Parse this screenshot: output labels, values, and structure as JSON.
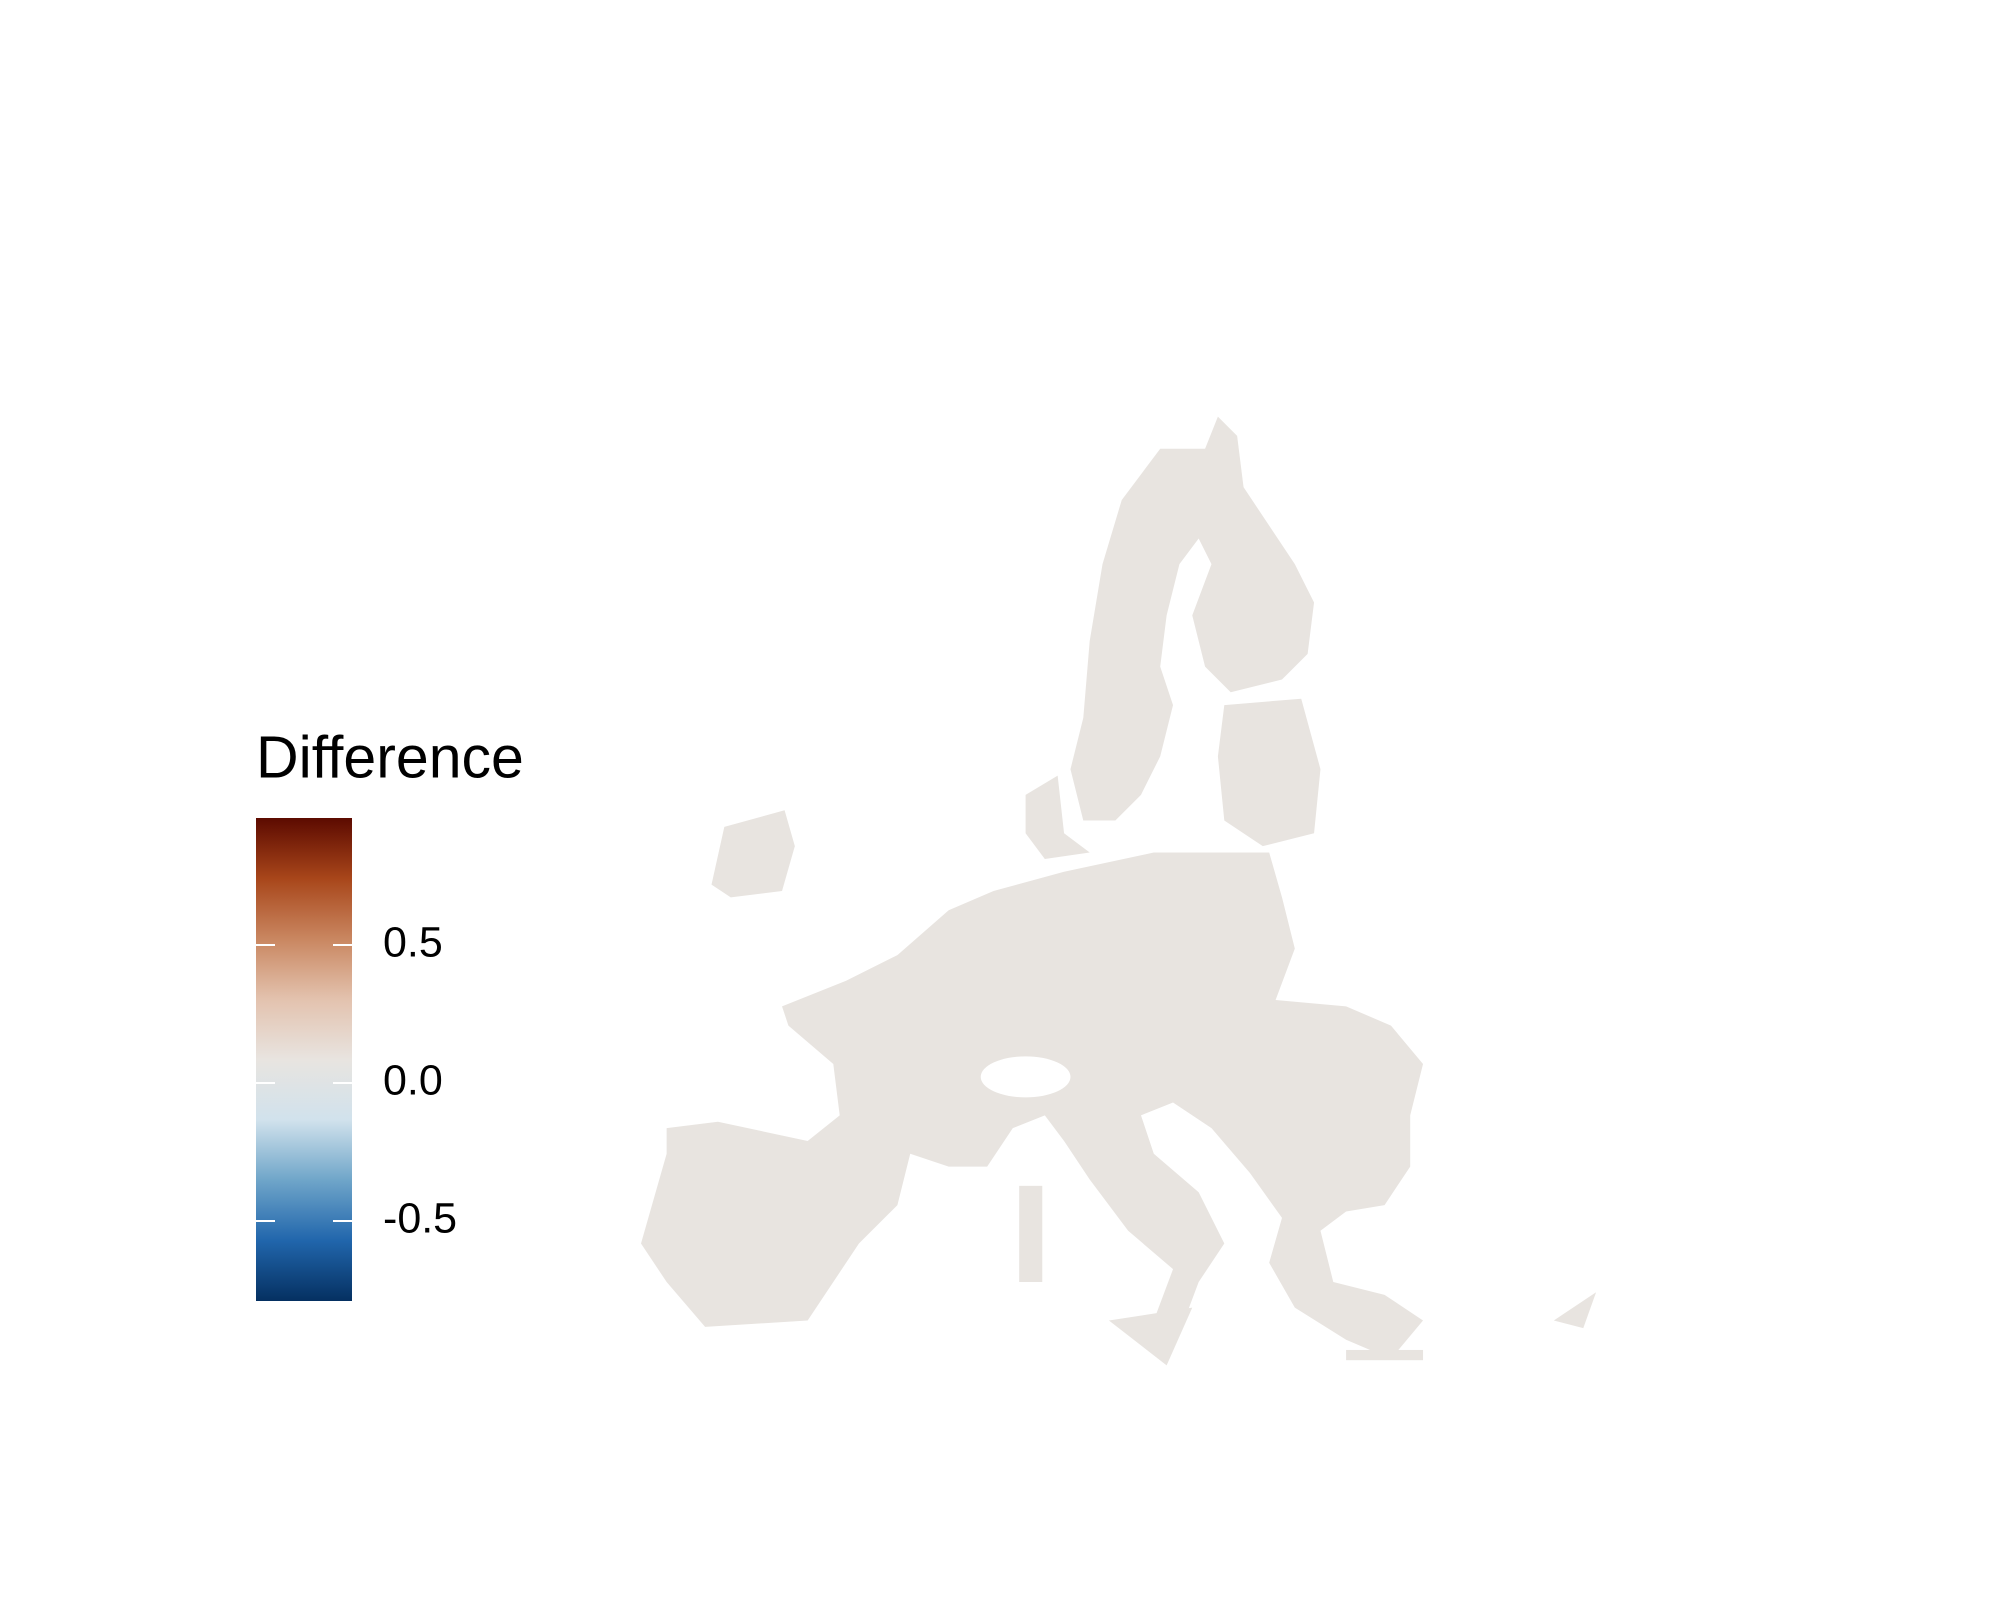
{
  "legend": {
    "title": "Difference",
    "clim": [
      -0.79,
      0.96
    ],
    "colors": [
      "#053061",
      "#2166ac",
      "#6fa5c9",
      "#d1e2ec",
      "#e8e4e0",
      "#e3c2ae",
      "#c98660",
      "#a8461a",
      "#5c0a00"
    ],
    "ticks": [
      -0.5,
      {
        "value": 0,
        "label": "0.0"
      },
      0.5
    ]
  }
}
